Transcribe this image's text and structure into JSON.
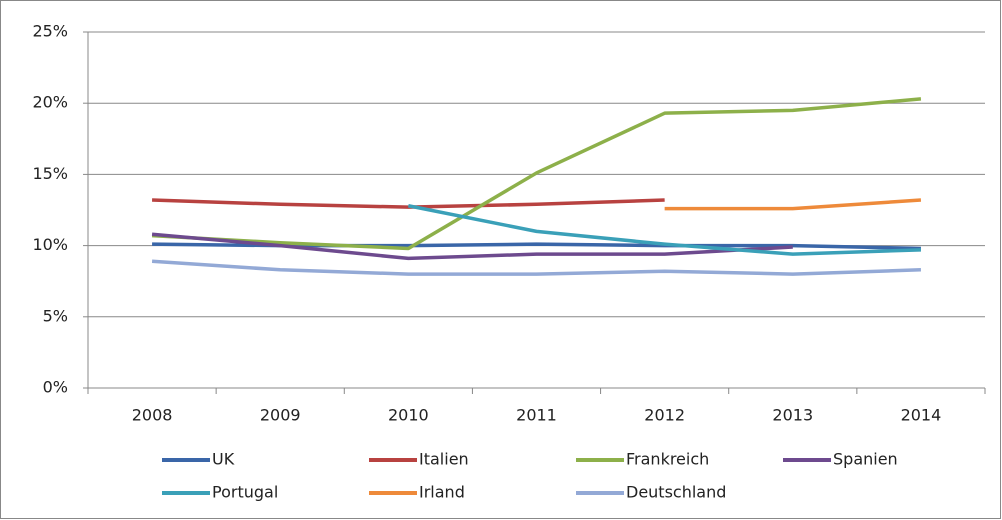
{
  "chart_data": {
    "type": "line",
    "categories": [
      "2008",
      "2009",
      "2010",
      "2011",
      "2012",
      "2013",
      "2014"
    ],
    "ylim": [
      0,
      25
    ],
    "yticks": [
      {
        "value": 0,
        "label": "0%"
      },
      {
        "value": 5,
        "label": "5%"
      },
      {
        "value": 10,
        "label": "10%"
      },
      {
        "value": 15,
        "label": "15%"
      },
      {
        "value": 20,
        "label": "20%"
      },
      {
        "value": 25,
        "label": "25%"
      }
    ],
    "grid": true,
    "legend": "bottom",
    "series": [
      {
        "name": "UK",
        "color": "#3a66a8",
        "values": [
          10.1,
          10.0,
          10.0,
          10.1,
          10.0,
          10.0,
          9.8
        ]
      },
      {
        "name": "Italien",
        "color": "#b84240",
        "values": [
          13.2,
          12.9,
          12.7,
          12.9,
          13.2,
          null,
          null
        ]
      },
      {
        "name": "Frankreich",
        "color": "#8db04a",
        "values": [
          10.7,
          10.2,
          9.8,
          15.1,
          19.3,
          19.5,
          20.3
        ]
      },
      {
        "name": "Spanien",
        "color": "#6d4a8e",
        "values": [
          10.8,
          10.0,
          9.1,
          9.4,
          9.4,
          9.9,
          null
        ]
      },
      {
        "name": "Portugal",
        "color": "#3aa0b8",
        "values": [
          null,
          null,
          12.8,
          11.0,
          10.1,
          9.4,
          9.7
        ]
      },
      {
        "name": "Irland",
        "color": "#ee8a3a",
        "values": [
          null,
          null,
          null,
          null,
          12.6,
          12.6,
          13.2
        ]
      },
      {
        "name": "Deutschland",
        "color": "#93a9d6",
        "values": [
          8.9,
          8.3,
          8.0,
          8.0,
          8.2,
          8.0,
          8.3
        ]
      }
    ]
  }
}
